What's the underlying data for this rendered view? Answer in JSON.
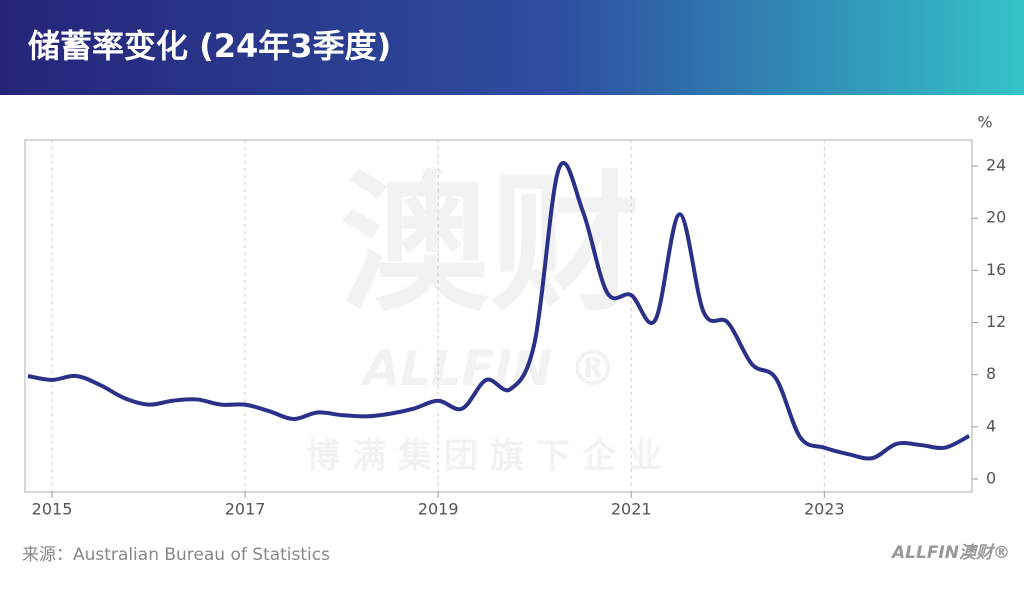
{
  "chart_data": {
    "type": "line",
    "title": "储蓄率变化 (24年3季度)",
    "unit": "%",
    "source": "来源：Australian Bureau of Statistics",
    "logo": "ALLFIN澳财®",
    "watermark": [
      "澳财",
      "ALLFIN ®",
      "博满集团旗下企业"
    ],
    "x": [
      2014.75,
      2015,
      2015.25,
      2015.5,
      2015.75,
      2016,
      2016.25,
      2016.5,
      2016.75,
      2017,
      2017.25,
      2017.5,
      2017.75,
      2018,
      2018.25,
      2018.5,
      2018.75,
      2019,
      2019.25,
      2019.5,
      2019.75,
      2020,
      2020.25,
      2020.5,
      2020.75,
      2021,
      2021.25,
      2021.5,
      2021.75,
      2022,
      2022.25,
      2022.5,
      2022.75,
      2023,
      2023.25,
      2023.5,
      2023.75,
      2024,
      2024.25,
      2024.5
    ],
    "series": [
      {
        "color": "#2b3088",
        "values": [
          7.9,
          7.6,
          7.9,
          7.2,
          6.2,
          5.7,
          6.0,
          6.1,
          5.7,
          5.7,
          5.2,
          4.6,
          5.1,
          4.9,
          4.8,
          5.0,
          5.4,
          6.0,
          5.4,
          7.6,
          6.9,
          10.5,
          23.8,
          20.5,
          14.3,
          14.1,
          12.2,
          20.3,
          12.8,
          12.0,
          8.8,
          7.7,
          3.2,
          2.4,
          1.9,
          1.6,
          2.7,
          2.6,
          2.4,
          3.3
        ]
      }
    ],
    "xlim": [
      2014.72,
      2024.53
    ],
    "xticks": [
      2015,
      2017,
      2019,
      2021,
      2023
    ],
    "ylim": [
      -1,
      26
    ],
    "yticks": [
      0,
      4,
      8,
      12,
      16,
      20,
      24
    ],
    "grid": true
  }
}
